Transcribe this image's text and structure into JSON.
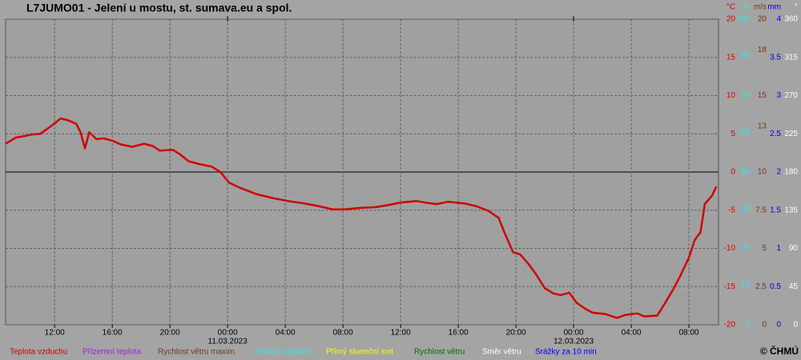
{
  "chart_data": {
    "type": "line",
    "title": "L7JUMO01 - Jelení u mostu, st. sumava.eu a spol.",
    "credit": "© ČHMÚ",
    "x": [
      -15.4,
      -14.7,
      -14.1,
      -13.6,
      -13.0,
      -12.4,
      -11.9,
      -11.6,
      -11.1,
      -10.5,
      -10.2,
      -9.9,
      -9.6,
      -9.1,
      -8.6,
      -8.0,
      -7.4,
      -6.6,
      -5.8,
      -5.2,
      -4.7,
      -3.8,
      -3.3,
      -2.7,
      -1.9,
      -1.1,
      -0.5,
      0.1,
      0.9,
      2.0,
      3.1,
      4.2,
      5.3,
      6.4,
      7.3,
      8.1,
      9.2,
      10.3,
      11.2,
      12.0,
      13.1,
      13.7,
      14.5,
      15.3,
      16.4,
      17.3,
      18.1,
      18.8,
      19.2,
      19.8,
      20.3,
      20.9,
      21.4,
      22.0,
      22.6,
      23.1,
      23.7,
      24.2,
      24.8,
      25.3,
      26.2,
      27.0,
      27.6,
      28.4,
      28.9,
      29.8,
      30.3,
      30.9,
      31.4,
      32.0,
      32.4,
      32.8,
      33.1,
      33.6,
      33.9
    ],
    "series": [
      {
        "name": "Teplota vzduchu",
        "color": "#d00000",
        "values": [
          3.7,
          4.5,
          4.7,
          4.9,
          5.0,
          5.8,
          6.5,
          7.0,
          6.8,
          6.3,
          5.2,
          3.1,
          5.2,
          4.3,
          4.4,
          4.1,
          3.6,
          3.3,
          3.7,
          3.4,
          2.8,
          2.9,
          2.3,
          1.4,
          1.0,
          0.7,
          0,
          -1.4,
          -2.1,
          -2.9,
          -3.4,
          -3.8,
          -4.1,
          -4.5,
          -4.9,
          -4.9,
          -4.7,
          -4.6,
          -4.3,
          -4.0,
          -3.8,
          -4.0,
          -4.2,
          -3.9,
          -4.1,
          -4.5,
          -5.1,
          -6.0,
          -7.9,
          -10.5,
          -10.8,
          -12.1,
          -13.4,
          -15.2,
          -15.9,
          -16.1,
          -15.8,
          -17.1,
          -17.9,
          -18.4,
          -18.6,
          -19.1,
          -18.7,
          -18.5,
          -18.9,
          -18.8,
          -17.3,
          -15.4,
          -13.6,
          -11.2,
          -8.9,
          -7.9,
          -4.2,
          -3.1,
          -1.9
        ]
      }
    ],
    "xlim": [
      -15.4,
      34.05
    ],
    "xticks": [
      {
        "value": -12,
        "label": "12:00"
      },
      {
        "value": -8,
        "label": "16:00"
      },
      {
        "value": -4,
        "label": "20:00"
      },
      {
        "value": 0,
        "label": "00:00"
      },
      {
        "value": 4,
        "label": "04:00"
      },
      {
        "value": 8,
        "label": "08:00"
      },
      {
        "value": 12,
        "label": "12:00"
      },
      {
        "value": 16,
        "label": "16:00"
      },
      {
        "value": 20,
        "label": "20:00"
      },
      {
        "value": 24,
        "label": "00:00"
      },
      {
        "value": 28,
        "label": "04:00"
      },
      {
        "value": 32,
        "label": "08:00"
      }
    ],
    "date_labels": [
      {
        "value": 0,
        "label": "11.03.2023"
      },
      {
        "value": 24,
        "label": "12.03.2023"
      }
    ],
    "ylabel": "°C",
    "ycolor": "#e00000",
    "ylim": [
      -20,
      20
    ],
    "yticks": [
      20,
      15,
      10,
      5,
      0,
      -5,
      -10,
      -15,
      -20
    ],
    "grid": true,
    "right_axes": [
      {
        "label": "%",
        "color": "#30e8e8",
        "ylim": [
          0,
          100
        ],
        "ticks": [
          100,
          88,
          75,
          63,
          50,
          38,
          25,
          13,
          0
        ]
      },
      {
        "label": "m/s",
        "color": "#703818",
        "ylim": [
          0,
          20
        ],
        "ticks": [
          20,
          18,
          15,
          13,
          10,
          7.5,
          5,
          2.5,
          0
        ]
      },
      {
        "label": "mm",
        "color": "#0000d0",
        "ylim": [
          0,
          4
        ],
        "ticks": [
          4,
          3.5,
          3,
          2.5,
          2,
          1.5,
          1,
          0.5,
          0
        ]
      },
      {
        "label": "°",
        "color": "#ffffff",
        "ylim": [
          0,
          360
        ],
        "ticks": [
          360,
          315,
          270,
          225,
          180,
          135,
          90,
          45,
          0
        ]
      }
    ],
    "legend": [
      {
        "name": "Teplota vzduchu",
        "color": "#d00000"
      },
      {
        "name": "Přízemní teplota",
        "color": "#a020e0"
      },
      {
        "name": "Rychlost větru maxim.",
        "color": "#703818"
      },
      {
        "name": "Vlhkost vzduchu",
        "color": "#30e8e8"
      },
      {
        "name": "Přímý sluneční svit",
        "color": "#ffff00"
      },
      {
        "name": "Rychlost větru",
        "color": "#007000"
      },
      {
        "name": "Směr větru",
        "color": "#ffffff"
      },
      {
        "name": "Srážky za 10 min",
        "color": "#0000ff"
      }
    ]
  }
}
